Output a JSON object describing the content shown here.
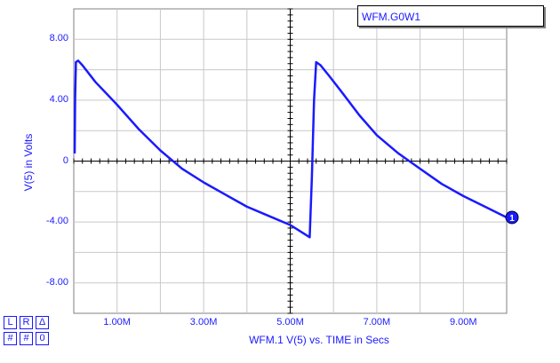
{
  "legend_label": "WFM.G0W1",
  "controls": {
    "l_label": "L",
    "r_label": "R",
    "delta_label": "Δ",
    "hash1_label": "#",
    "hash2_label": "#",
    "zero_label": "0"
  },
  "marker_label": "1",
  "colors": {
    "trace": "#1a1aff",
    "grid": "#c8c8c8",
    "axis": "#000000",
    "text": "#1a1aff"
  },
  "chart_data": {
    "type": "line",
    "title": "",
    "xlabel": "WFM.1   V(5) vs. TIME in Secs",
    "ylabel": "V(5) in Volts",
    "xlim": [
      0,
      10
    ],
    "ylim": [
      -10,
      10
    ],
    "x_ticks": [
      {
        "value": 1,
        "label": "1.00M"
      },
      {
        "value": 3,
        "label": "3.00M"
      },
      {
        "value": 5,
        "label": "5.00M"
      },
      {
        "value": 7,
        "label": "7.00M"
      },
      {
        "value": 9,
        "label": "9.00M"
      }
    ],
    "y_ticks": [
      {
        "value": 8,
        "label": "8.00"
      },
      {
        "value": 4,
        "label": "4.00"
      },
      {
        "value": 0,
        "label": "0"
      },
      {
        "value": -4,
        "label": "-4.00"
      },
      {
        "value": -8,
        "label": "-8.00"
      }
    ],
    "grid": true,
    "series": [
      {
        "name": "WFM.1",
        "x": [
          0.02,
          0.03,
          0.05,
          0.1,
          0.2,
          0.5,
          1.0,
          1.5,
          2.0,
          2.5,
          3.0,
          3.5,
          4.0,
          4.5,
          5.0,
          5.45,
          5.5,
          5.55,
          5.6,
          5.7,
          5.9,
          6.2,
          6.6,
          7.0,
          7.5,
          8.0,
          8.5,
          9.0,
          9.5,
          10.0
        ],
        "y": [
          0.5,
          4.0,
          6.5,
          6.6,
          6.3,
          5.2,
          3.7,
          2.1,
          0.7,
          -0.5,
          -1.4,
          -2.2,
          -3.0,
          -3.6,
          -4.2,
          -5.0,
          -1.0,
          4.0,
          6.5,
          6.3,
          5.6,
          4.5,
          3.0,
          1.7,
          0.5,
          -0.5,
          -1.5,
          -2.3,
          -3.0,
          -3.7
        ]
      }
    ]
  }
}
